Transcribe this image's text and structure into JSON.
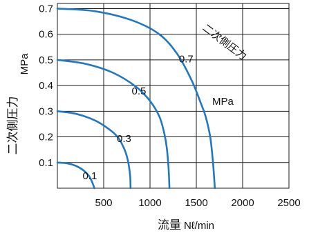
{
  "chart_data": {
    "type": "line",
    "x_axis": {
      "label_cjk": "流量",
      "label_unit": "Nℓ/min",
      "range": [
        0,
        2500
      ],
      "ticks": [
        500,
        1000,
        1500,
        2000,
        2500
      ],
      "tick_labels": [
        "500",
        "1000",
        "1500",
        "2000",
        "2500"
      ]
    },
    "y_axis": {
      "label_cjk": "二次側圧力",
      "label_unit": "MPa",
      "range": [
        0,
        0.72
      ],
      "ticks": [
        0.1,
        0.2,
        0.3,
        0.4,
        0.5,
        0.6,
        0.7
      ],
      "tick_labels": [
        "0.1",
        "0.2",
        "0.3",
        "0.4",
        "0.5",
        "0.6",
        "0.7"
      ]
    },
    "grid": true,
    "annotations": {
      "secondary_pressure_tag": "二次側圧力",
      "mpa_tag": "MPa"
    },
    "series": [
      {
        "label": "0.1",
        "x": [
          0,
          100,
          200,
          280,
          340,
          370,
          390,
          400
        ],
        "y": [
          0.1,
          0.097,
          0.087,
          0.07,
          0.048,
          0.028,
          0.01,
          0
        ]
      },
      {
        "label": "0.3",
        "x": [
          0,
          200,
          400,
          550,
          650,
          720,
          760,
          785,
          790
        ],
        "y": [
          0.3,
          0.29,
          0.265,
          0.232,
          0.2,
          0.155,
          0.11,
          0.05,
          0
        ]
      },
      {
        "label": "0.5",
        "x": [
          0,
          300,
          600,
          850,
          1000,
          1100,
          1150,
          1180,
          1200,
          1210
        ],
        "y": [
          0.5,
          0.485,
          0.45,
          0.395,
          0.34,
          0.28,
          0.22,
          0.16,
          0.08,
          0
        ]
      },
      {
        "label": "0.7",
        "x": [
          0,
          400,
          800,
          1100,
          1300,
          1450,
          1550,
          1600,
          1650,
          1680,
          1700
        ],
        "y": [
          0.7,
          0.69,
          0.655,
          0.6,
          0.52,
          0.42,
          0.33,
          0.28,
          0.2,
          0.1,
          0
        ]
      }
    ],
    "colors": {
      "curve": "#1f78c1",
      "grid": "#1a1a1a"
    }
  }
}
